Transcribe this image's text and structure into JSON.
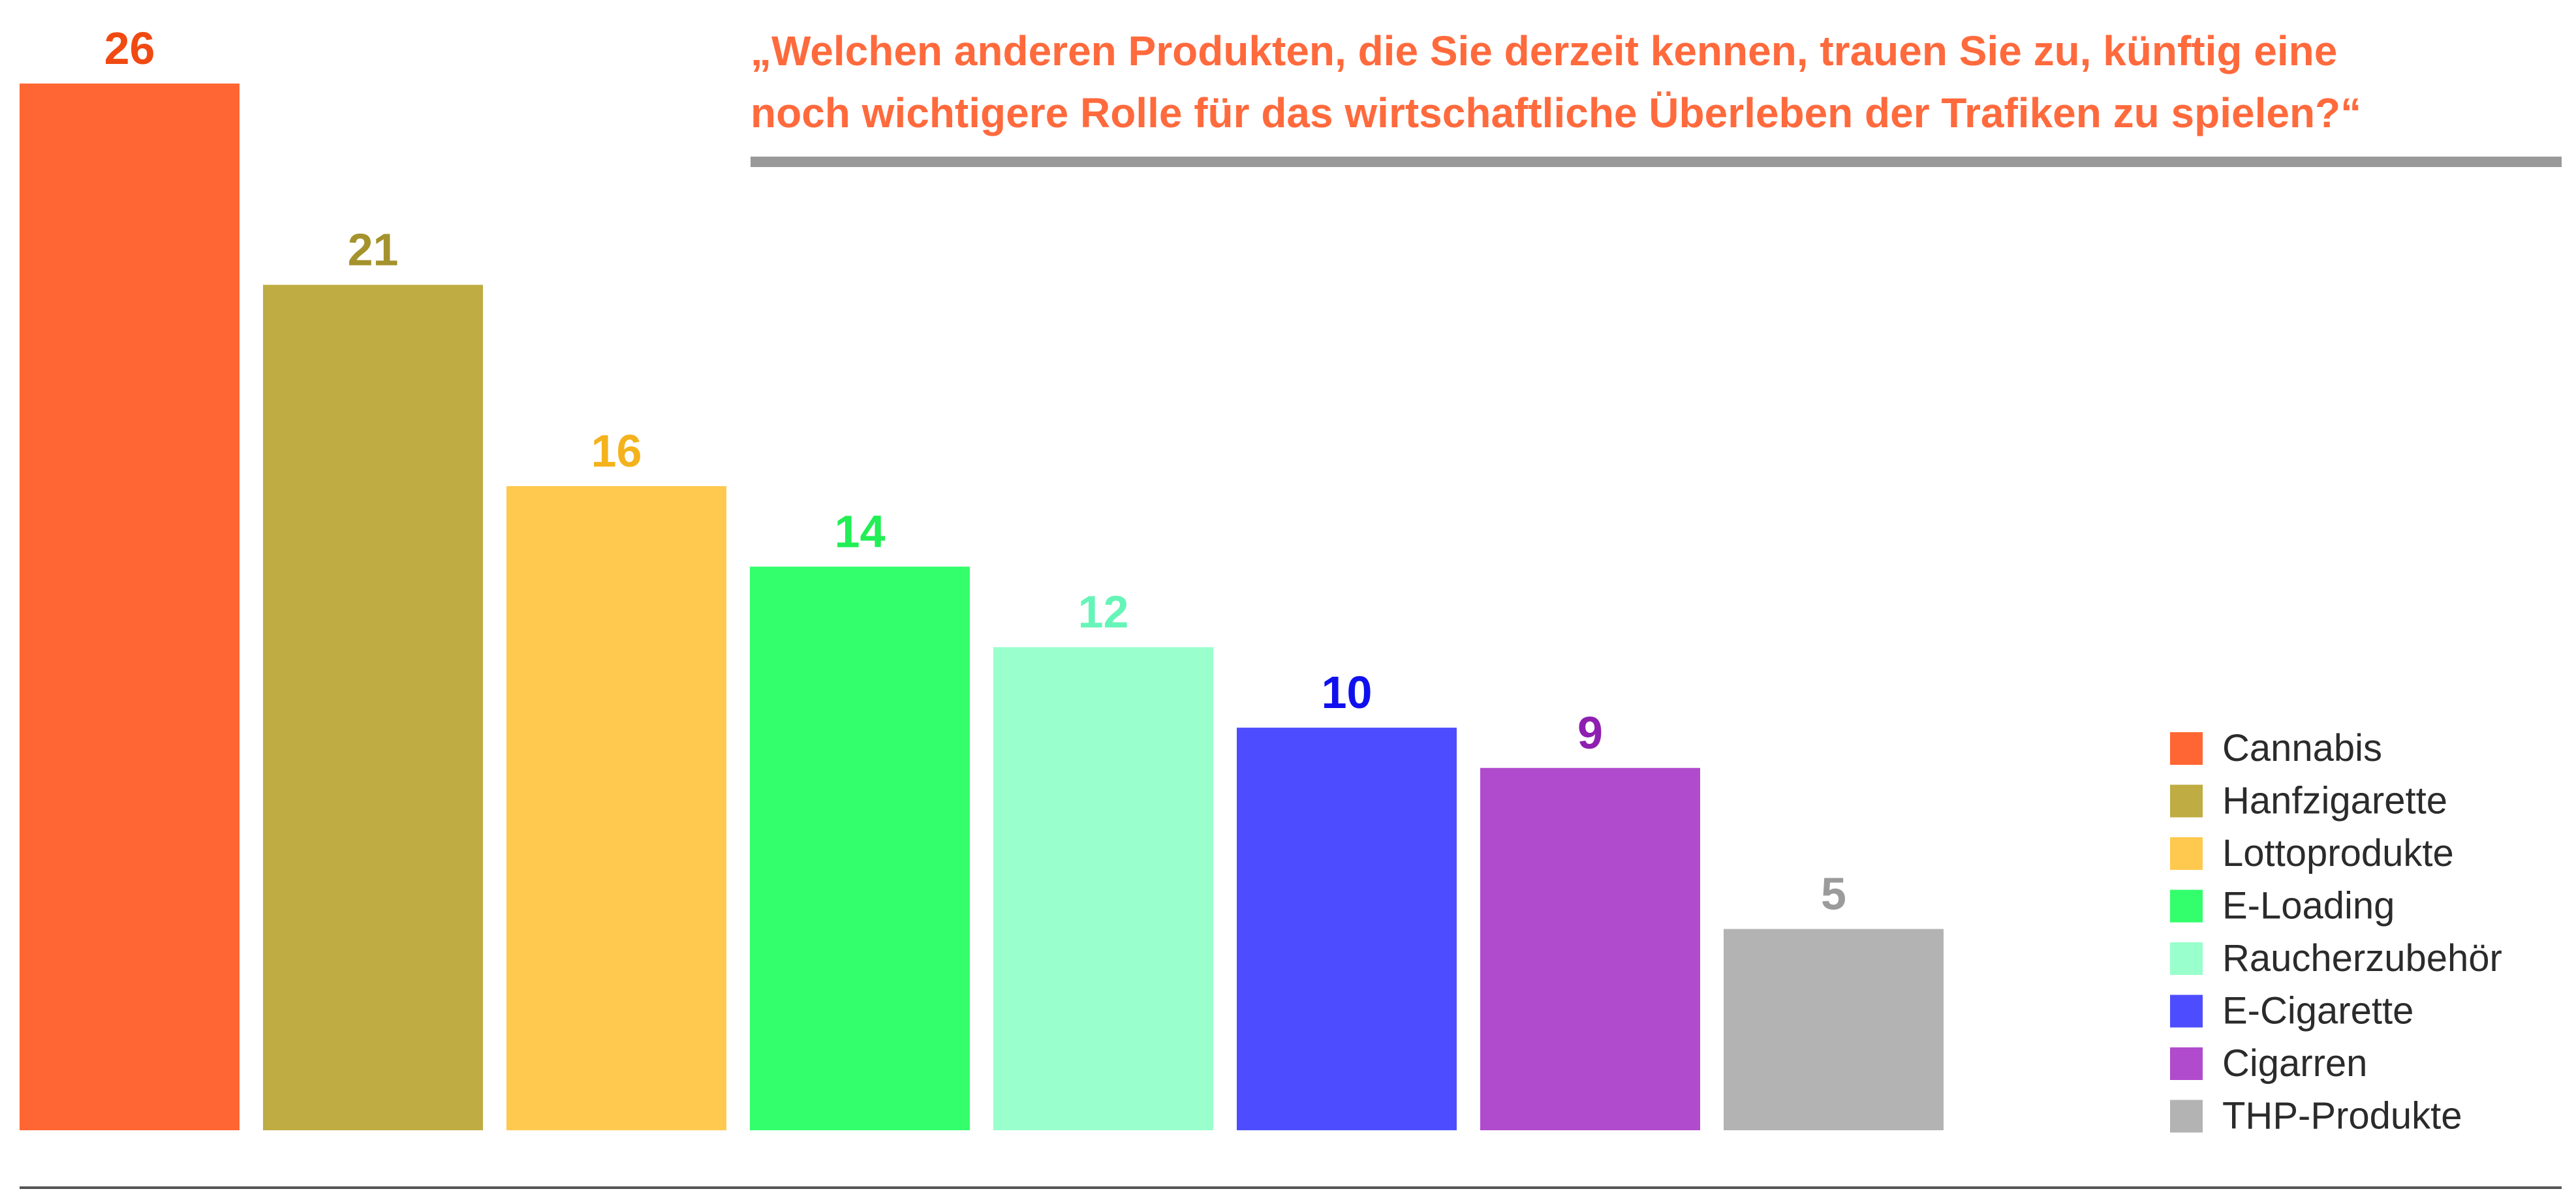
{
  "chart_data": {
    "type": "bar",
    "title_lines": [
      "„Welchen anderen Produkten, die Sie derzeit kennen, trauen Sie zu, künftig eine",
      "noch wichtigere Rolle für das wirtschaftliche Überleben der Trafiken zu spielen?“"
    ],
    "title_color": "#ff6a3d",
    "categories": [
      "Cannabis",
      "Hanfzigarette",
      "Lottoprodukte",
      "E-Loading",
      "Raucherzubehör",
      "E-Cigarette",
      "Cigarren",
      "THP-Produkte"
    ],
    "values": [
      26,
      21,
      16,
      14,
      12,
      10,
      9,
      5
    ],
    "colors": [
      "#ff6633",
      "#bfac42",
      "#ffc94f",
      "#33ff6c",
      "#99ffcc",
      "#4d4dff",
      "#b04bcd",
      "#b3b3b3"
    ],
    "label_colors": [
      "#f04a12",
      "#a4922c",
      "#f4b21c",
      "#22ee55",
      "#66f5b8",
      "#1010ee",
      "#8e1fb0",
      "#9b9b9b"
    ],
    "ylim": [
      0,
      26
    ],
    "grid": false,
    "legend_position": "right"
  }
}
